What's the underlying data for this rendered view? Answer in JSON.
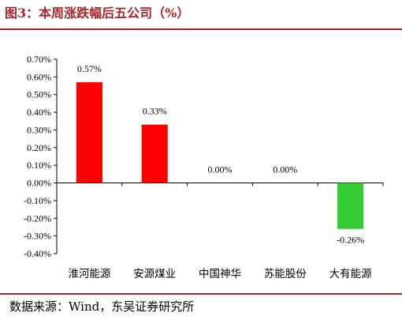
{
  "title": "图3：本周涨跌幅后五公司（%）",
  "source": "数据来源：Wind，东吴证券研究所",
  "chart_data": {
    "type": "bar",
    "categories": [
      "淮河能源",
      "安源煤业",
      "中国神华",
      "苏能股份",
      "大有能源"
    ],
    "values": [
      0.57,
      0.33,
      0.0,
      0.0,
      -0.26
    ],
    "data_labels": [
      "0.57%",
      "0.33%",
      "0.00%",
      "0.00%",
      "-0.26%"
    ],
    "ylim": [
      -0.4,
      0.7
    ],
    "yticks": [
      0.7,
      0.6,
      0.5,
      0.4,
      0.3,
      0.2,
      0.1,
      0.0,
      -0.1,
      -0.2,
      -0.3,
      -0.4
    ],
    "ytick_labels": [
      "0.70%",
      "0.60%",
      "0.50%",
      "0.40%",
      "0.30%",
      "0.20%",
      "0.10%",
      "0.00%",
      "-0.10%",
      "-0.20%",
      "-0.30%",
      "-0.40%"
    ],
    "xlabel": "",
    "ylabel": "",
    "grid": false,
    "colors": {
      "positive": "#ff0000",
      "negative": "#33cc33"
    }
  }
}
